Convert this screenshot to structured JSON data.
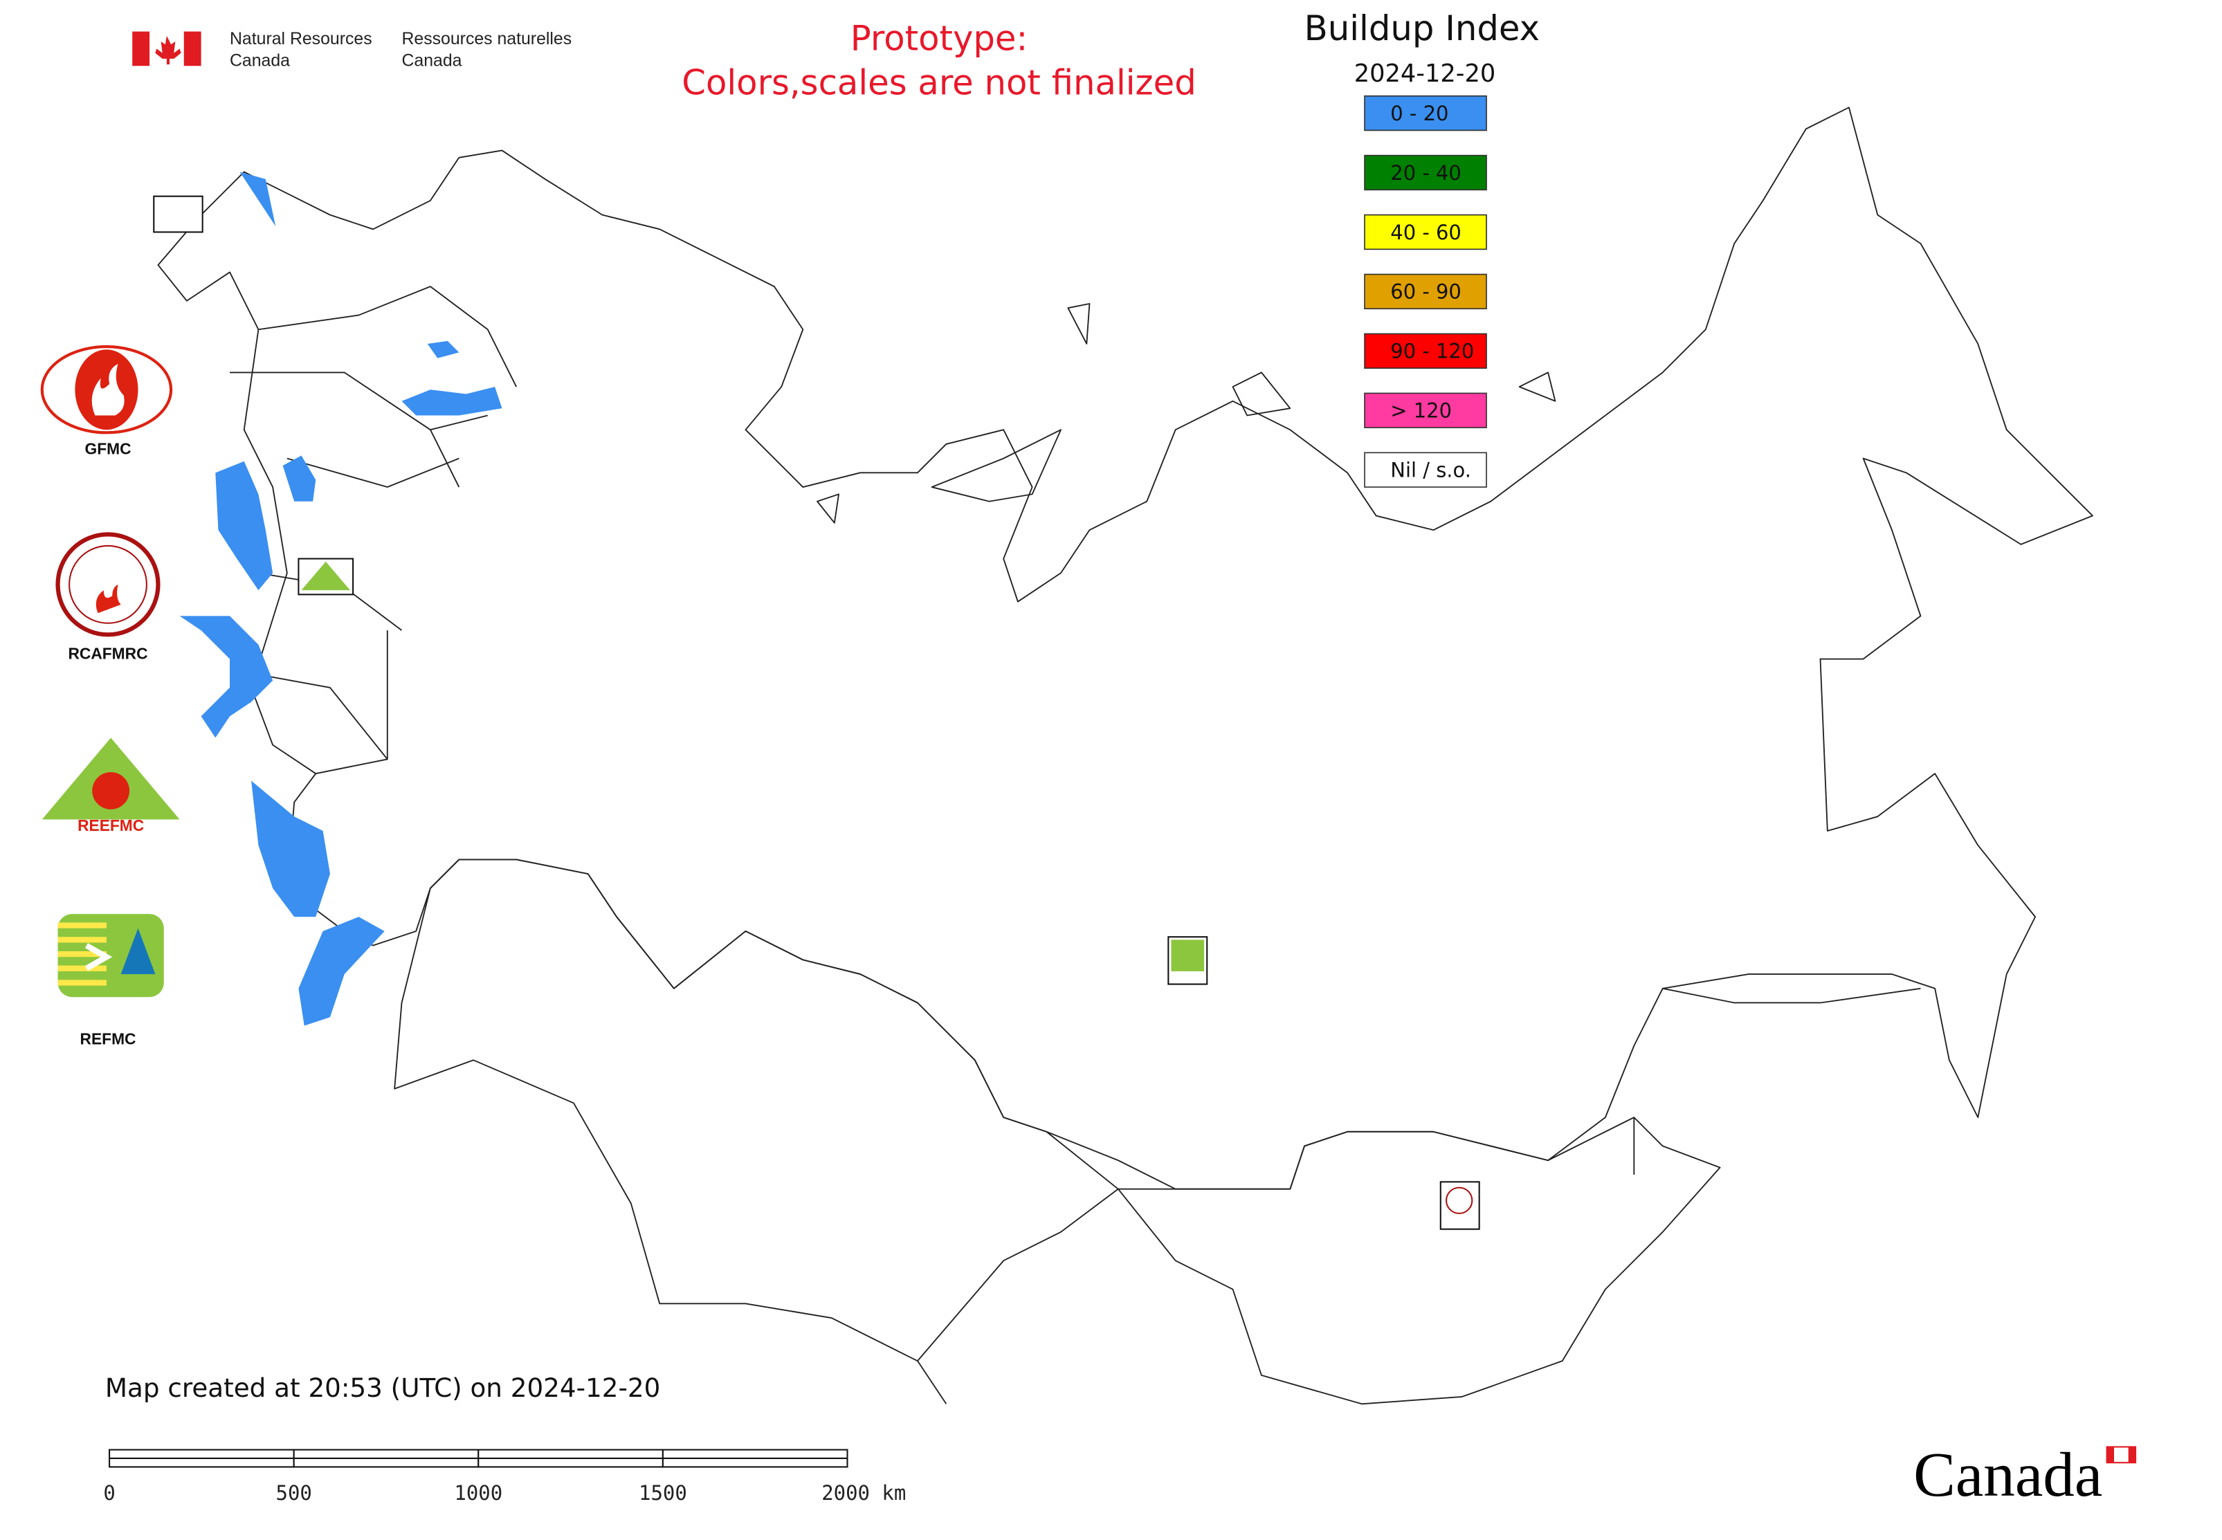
{
  "header": {
    "agency_en": [
      "Natural Resources",
      "Canada"
    ],
    "agency_fr": [
      "Ressources naturelles",
      "Canada"
    ],
    "prototype_note": [
      "Prototype:",
      "Colors,scales are not finalized"
    ]
  },
  "legend": {
    "title": "Buildup Index",
    "date": "2024-12-20",
    "items": [
      {
        "label": "0 - 20",
        "color": "#3a8ff0"
      },
      {
        "label": "20 - 40",
        "color": "#008000"
      },
      {
        "label": "40 - 60",
        "color": "#ffff00"
      },
      {
        "label": "60 - 90",
        "color": "#e0a000"
      },
      {
        "label": "90 - 120",
        "color": "#ff0000"
      },
      {
        "label": "> 120",
        "color": "#ff3aa0"
      },
      {
        "label": "Nil / s.o.",
        "color": "#ffffff"
      }
    ]
  },
  "logos": {
    "labels": [
      "GFMC",
      "RCAFMRC",
      "REFMC"
    ],
    "reefmc_text": "REEFMC"
  },
  "footer": {
    "created": "Map created at 20:53 (UTC) on 2024-12-20",
    "scale_ticks": [
      "0",
      "500",
      "1000",
      "1500",
      "2000 km"
    ],
    "wordmark": "Canada"
  }
}
